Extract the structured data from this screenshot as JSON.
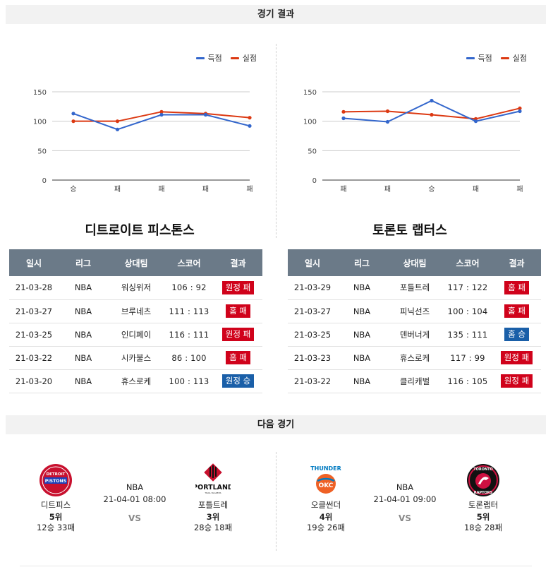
{
  "sections": {
    "results_title": "경기 결과",
    "next_title": "다음 경기"
  },
  "legend": {
    "scored": "득점",
    "allowed": "실점"
  },
  "colors": {
    "scored": "#3366cc",
    "allowed": "#dc3912",
    "loss": "#d0021b",
    "win": "#1a5fa8",
    "header": "#6b7a88"
  },
  "chart_data": [
    {
      "type": "line",
      "categories": [
        "승",
        "패",
        "패",
        "패",
        "패"
      ],
      "series": [
        {
          "name": "득점",
          "values": [
            113,
            86,
            111,
            111,
            92
          ]
        },
        {
          "name": "실점",
          "values": [
            100,
            100,
            116,
            113,
            106
          ]
        }
      ],
      "yticks": [
        "0",
        "50",
        "100",
        "150"
      ],
      "ylim": [
        0,
        150
      ],
      "grid": true,
      "legend": "top-right"
    },
    {
      "type": "line",
      "categories": [
        "패",
        "패",
        "승",
        "패",
        "패"
      ],
      "series": [
        {
          "name": "득점",
          "values": [
            105,
            99,
            135,
            100,
            117
          ]
        },
        {
          "name": "실점",
          "values": [
            116,
            117,
            111,
            104,
            122
          ]
        }
      ],
      "yticks": [
        "0",
        "50",
        "100",
        "150"
      ],
      "ylim": [
        0,
        150
      ],
      "grid": true,
      "legend": "top-right"
    }
  ],
  "teams": [
    {
      "title": "디트로이트 피스톤스",
      "headers": [
        "일시",
        "리그",
        "상대팀",
        "스코어",
        "결과"
      ],
      "games": [
        {
          "date": "21-03-28",
          "league": "NBA",
          "opponent": "워싱위저",
          "score": "106 : 92",
          "result": "원정 패",
          "type": "loss"
        },
        {
          "date": "21-03-27",
          "league": "NBA",
          "opponent": "브루네츠",
          "score": "111 : 113",
          "result": "홈 패",
          "type": "loss"
        },
        {
          "date": "21-03-25",
          "league": "NBA",
          "opponent": "인디페이",
          "score": "116 : 111",
          "result": "원정 패",
          "type": "loss"
        },
        {
          "date": "21-03-22",
          "league": "NBA",
          "opponent": "시카불스",
          "score": "86 : 100",
          "result": "홈 패",
          "type": "loss"
        },
        {
          "date": "21-03-20",
          "league": "NBA",
          "opponent": "휴스로케",
          "score": "100 : 113",
          "result": "원정 승",
          "type": "win"
        }
      ]
    },
    {
      "title": "토론토 랩터스",
      "headers": [
        "일시",
        "리그",
        "상대팀",
        "스코어",
        "결과"
      ],
      "games": [
        {
          "date": "21-03-29",
          "league": "NBA",
          "opponent": "포틀트레",
          "score": "117 : 122",
          "result": "홈 패",
          "type": "loss"
        },
        {
          "date": "21-03-27",
          "league": "NBA",
          "opponent": "피닉선즈",
          "score": "100 : 104",
          "result": "홈 패",
          "type": "loss"
        },
        {
          "date": "21-03-25",
          "league": "NBA",
          "opponent": "덴버너게",
          "score": "135 : 111",
          "result": "홈 승",
          "type": "win"
        },
        {
          "date": "21-03-23",
          "league": "NBA",
          "opponent": "휴스로케",
          "score": "117 : 99",
          "result": "원정 패",
          "type": "loss"
        },
        {
          "date": "21-03-22",
          "league": "NBA",
          "opponent": "클리캐벌",
          "score": "116 : 105",
          "result": "원정 패",
          "type": "loss"
        }
      ]
    }
  ],
  "next_games": [
    {
      "league": "NBA",
      "datetime": "21-04-01 08:00",
      "vs": "VS",
      "home": {
        "name": "디트피스",
        "rank": "5위",
        "record": "12승 33패",
        "logo_text": "DETROIT PISTONS",
        "logo": "pistons-logo"
      },
      "away": {
        "name": "포틀트레",
        "rank": "3위",
        "record": "28승 18패",
        "logo_text": "PORTLAND",
        "logo": "blazers-logo"
      }
    },
    {
      "league": "NBA",
      "datetime": "21-04-01 09:00",
      "vs": "VS",
      "home": {
        "name": "오클썬더",
        "rank": "4위",
        "record": "19승 26패",
        "logo_text": "THUNDER OKC",
        "logo": "thunder-logo"
      },
      "away": {
        "name": "토론랩터",
        "rank": "5위",
        "record": "18승 28패",
        "logo_text": "TORONTO RAPTORS",
        "logo": "raptors-logo"
      }
    }
  ]
}
